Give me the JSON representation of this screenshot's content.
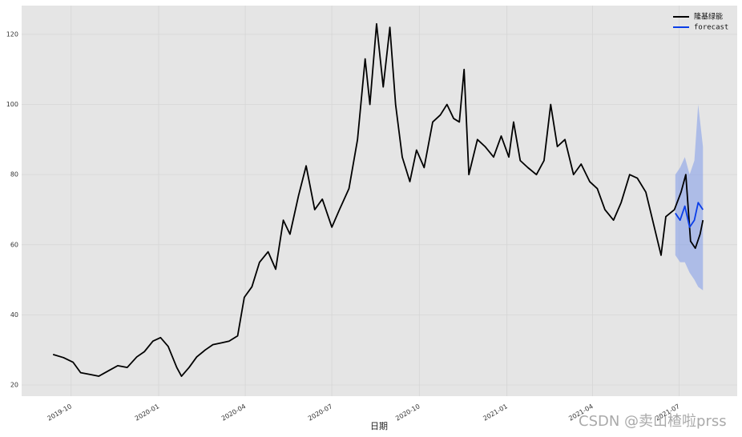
{
  "chart_data": {
    "type": "line",
    "xlabel": "日期",
    "watermark": "CSDN @卖山楂啦prss",
    "xlim": [
      "2019-08-10",
      "2021-08-31"
    ],
    "ylim": [
      16.8,
      128.2
    ],
    "xticks": [
      {
        "value": "2019-10-01",
        "label": "2019-10"
      },
      {
        "value": "2020-01-01",
        "label": "2020-01"
      },
      {
        "value": "2020-04-01",
        "label": "2020-04"
      },
      {
        "value": "2020-07-01",
        "label": "2020-07"
      },
      {
        "value": "2020-10-01",
        "label": "2020-10"
      },
      {
        "value": "2021-01-01",
        "label": "2021-01"
      },
      {
        "value": "2021-04-01",
        "label": "2021-04"
      },
      {
        "value": "2021-07-01",
        "label": "2021-07"
      }
    ],
    "yticks": [
      20,
      40,
      60,
      80,
      100,
      120
    ],
    "grid": true,
    "legend": "upper right",
    "series": [
      {
        "name": "隆基绿能",
        "color": "#000000",
        "x": [
          "2019-09-12",
          "2019-09-23",
          "2019-10-03",
          "2019-10-11",
          "2019-10-21",
          "2019-10-30",
          "2019-11-09",
          "2019-11-19",
          "2019-11-29",
          "2019-12-09",
          "2019-12-17",
          "2019-12-26",
          "2020-01-03",
          "2020-01-11",
          "2020-01-20",
          "2020-01-25",
          "2020-02-02",
          "2020-02-10",
          "2020-02-19",
          "2020-02-27",
          "2020-03-07",
          "2020-03-15",
          "2020-03-24",
          "2020-03-31",
          "2020-04-08",
          "2020-04-16",
          "2020-04-25",
          "2020-05-03",
          "2020-05-11",
          "2020-05-18",
          "2020-05-27",
          "2020-06-04",
          "2020-06-13",
          "2020-06-21",
          "2020-07-01",
          "2020-07-09",
          "2020-07-19",
          "2020-07-28",
          "2020-08-05",
          "2020-08-10",
          "2020-08-17",
          "2020-08-24",
          "2020-08-31",
          "2020-09-06",
          "2020-09-13",
          "2020-09-21",
          "2020-09-28",
          "2020-10-06",
          "2020-10-15",
          "2020-10-23",
          "2020-10-30",
          "2020-11-06",
          "2020-11-12",
          "2020-11-17",
          "2020-11-22",
          "2020-12-01",
          "2020-12-09",
          "2020-12-18",
          "2020-12-26",
          "2021-01-03",
          "2021-01-08",
          "2021-01-15",
          "2021-01-23",
          "2021-02-01",
          "2021-02-09",
          "2021-02-16",
          "2021-02-23",
          "2021-03-03",
          "2021-03-12",
          "2021-03-20",
          "2021-03-29",
          "2021-04-06",
          "2021-04-14",
          "2021-04-23",
          "2021-05-01",
          "2021-05-10",
          "2021-05-18",
          "2021-05-27",
          "2021-06-04",
          "2021-06-12",
          "2021-06-17",
          "2021-06-26",
          "2021-07-03",
          "2021-07-08",
          "2021-07-13",
          "2021-07-18",
          "2021-07-23",
          "2021-07-26"
        ],
        "values": [
          28.7,
          27.8,
          26.5,
          23.5,
          23.0,
          22.5,
          24.0,
          25.5,
          25.0,
          28.0,
          29.5,
          32.5,
          33.5,
          31.0,
          25.0,
          22.5,
          25.0,
          28.0,
          30.0,
          31.5,
          32.0,
          32.5,
          34.0,
          45.0,
          48.0,
          55.0,
          58.0,
          53.0,
          67.0,
          63.0,
          74.0,
          82.5,
          70.0,
          73.0,
          65.0,
          70.0,
          76.0,
          90.0,
          113.0,
          100.0,
          123.0,
          105.0,
          122.0,
          100.0,
          85.0,
          78.0,
          87.0,
          82.0,
          95.0,
          97.0,
          100.0,
          96.0,
          95.0,
          110.0,
          80.0,
          90.0,
          88.0,
          85.0,
          91.0,
          85.0,
          95.0,
          84.0,
          82.0,
          80.0,
          84.0,
          100.0,
          88.0,
          90.0,
          80.0,
          83.0,
          78.0,
          76.0,
          70.0,
          67.0,
          72.0,
          80.0,
          79.0,
          75.0,
          66.0,
          57.0,
          68.0,
          70.0,
          75.0,
          80.0,
          61.0,
          59.0,
          63.0,
          67.0
        ]
      },
      {
        "name": "forecast",
        "color": "#0a3ee8",
        "band_color": "#7f9bea",
        "x": [
          "2021-06-27",
          "2021-07-02",
          "2021-07-07",
          "2021-07-12",
          "2021-07-17",
          "2021-07-21",
          "2021-07-26"
        ],
        "values": [
          69,
          67,
          71,
          65,
          67,
          72,
          70
        ],
        "lower": [
          57,
          55,
          55,
          52,
          50,
          48,
          47
        ],
        "upper": [
          80,
          82,
          85,
          80,
          84,
          100,
          88
        ]
      }
    ]
  }
}
